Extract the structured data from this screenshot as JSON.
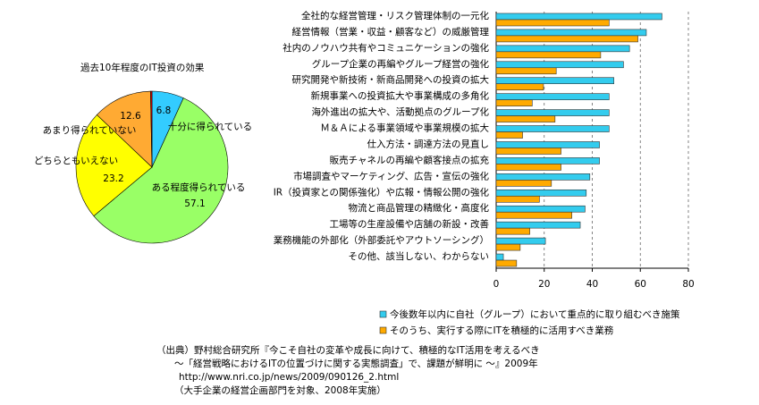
{
  "chart_data": [
    {
      "type": "pie",
      "title": "過去10年程度のIT投資の効果",
      "categories": [
        "十分に得られている",
        "ある程度得られている",
        "どちらともいえない",
        "あまり得られていない",
        null
      ],
      "values": [
        6.8,
        57.1,
        23.2,
        12.6,
        0.3
      ],
      "colors": [
        "#33ccff",
        "#99ff66",
        "#ffff00",
        "#ffaa33",
        "#ff0000"
      ]
    },
    {
      "type": "hbar",
      "categories": [
        "全社的な経営管理・リスク管理体制の一元化",
        "経営情報（営業・収益・顧客など）の威厳管理",
        "社内のノウハウ共有やコミュニケーションの強化",
        "グループ企業の再編やグループ経営の強化",
        "研究開発や新技術・新商品開発への投資の拡大",
        "新規事業への投資拡大や事業構成の多角化",
        "海外進出の拡大や、活動拠点のグループ化",
        "Ｍ＆Ａによる事業領域や事業規模の拡大",
        "仕入方法・調達方法の見直し",
        "販売チャネルの再編や顧客接点の拡充",
        "市場調査やマーケティング、広告・宣伝の強化",
        "IR（投資家との関係強化）や広報・情報公開の強化",
        "物流と商品管理の精緻化・高度化",
        "工場等の生産設備や店舗の新設・改善",
        "業務機能の外部化（外部委託やアウトソーシング）",
        "その他、該当しない、わからない"
      ],
      "series": [
        {
          "name": "今後数年以内に自社（グループ）において重点的に取り組むべき施策",
          "color": "#33ccee",
          "values": [
            69,
            62.5,
            55.5,
            53,
            49,
            47,
            47,
            47,
            43,
            43,
            39,
            37.5,
            37,
            35,
            20.5,
            3
          ]
        },
        {
          "name": "そのうち、実行する際にITを積極的に活用すべき業務",
          "color": "#ffaa00",
          "values": [
            47,
            59,
            43.5,
            25,
            19.7,
            15,
            24.5,
            11,
            27,
            27,
            23,
            18,
            31.5,
            14,
            10,
            8.5
          ]
        }
      ],
      "xlim": [
        0,
        80
      ],
      "xticks": [
        0,
        20,
        40,
        60,
        80
      ],
      "grid": true
    }
  ],
  "source": [
    "（出典）野村総合研究所『今こそ自社の変革や成長に向けて、積極的なIT活用を考えるべき",
    "～「経営戦略におけるITの位置づけに関する実態調査」で、課題が鮮明に ～』2009年",
    "http://www.nri.co.jp/news/2009/090126_2.html",
    "（大手企業の経営企画部門を対象、2008年実施）"
  ]
}
